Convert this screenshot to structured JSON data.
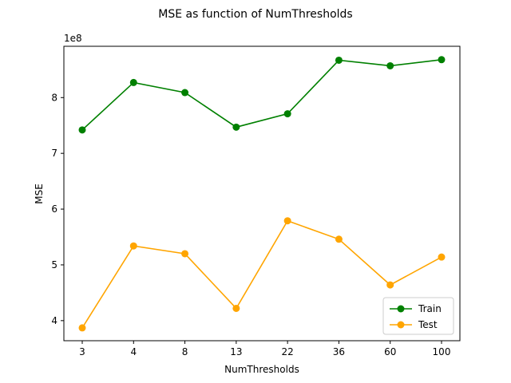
{
  "chart_data": {
    "type": "line",
    "title": "MSE as function of NumThresholds",
    "xlabel": "NumThresholds",
    "ylabel": "MSE",
    "y_scale_label": "1e8",
    "categories": [
      "3",
      "4",
      "8",
      "13",
      "22",
      "36",
      "60",
      "100"
    ],
    "y_ticks": [
      4,
      5,
      6,
      7,
      8
    ],
    "ylim": [
      3.64,
      8.92
    ],
    "grid": false,
    "legend_position": "lower right",
    "series": [
      {
        "name": "Train",
        "color": "#008000",
        "marker": "circle",
        "values": [
          7.42,
          8.27,
          8.09,
          7.47,
          7.71,
          8.67,
          8.57,
          8.68
        ]
      },
      {
        "name": "Test",
        "color": "#ffa500",
        "marker": "circle",
        "values": [
          3.87,
          5.34,
          5.2,
          4.22,
          5.79,
          5.46,
          4.64,
          5.14
        ]
      }
    ]
  }
}
